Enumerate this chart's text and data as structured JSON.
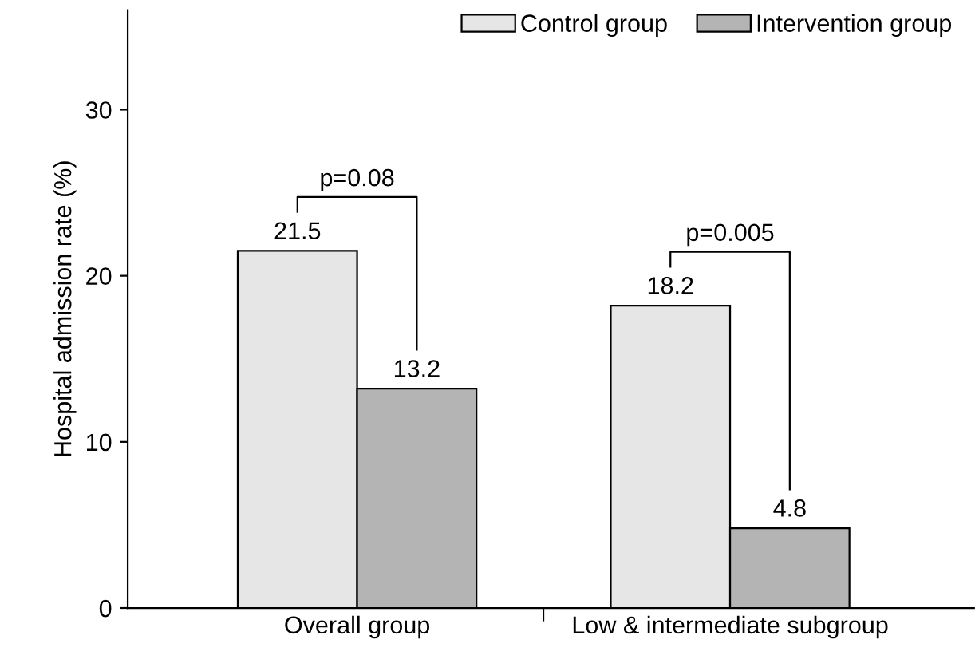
{
  "chart_data": {
    "type": "bar",
    "ylabel": "Hospital admission rate (%)",
    "categories": [
      "Overall group",
      "Low & intermediate subgroup"
    ],
    "series": [
      {
        "name": "Control group",
        "color": "#e6e6e6",
        "values": [
          21.5,
          18.2
        ]
      },
      {
        "name": "Intervention group",
        "color": "#b4b4b4",
        "values": [
          13.2,
          4.8
        ]
      }
    ],
    "ylim": [
      0,
      36
    ],
    "yticks": [
      0,
      10,
      20,
      30
    ],
    "data_labels": true,
    "legend": "top right",
    "grid": false,
    "annotations": [
      "p=0.08",
      "p=0.005"
    ]
  }
}
